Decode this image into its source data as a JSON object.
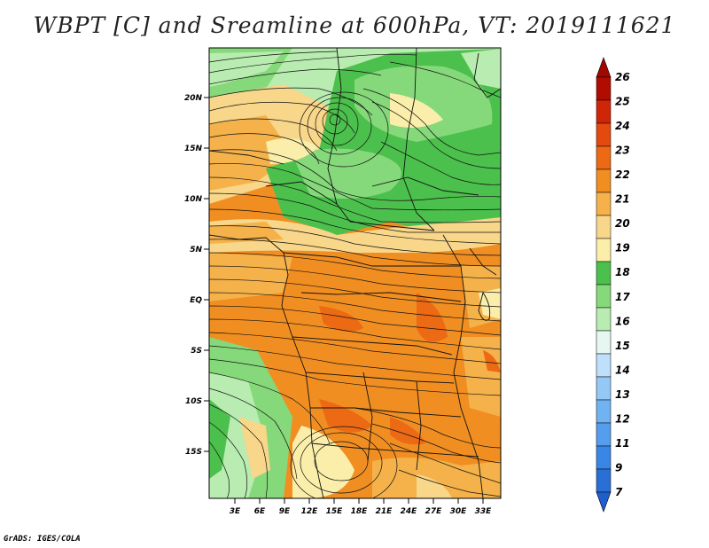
{
  "title": "WBPT [C] and Sreamline at 600hPa, VT: 2019111621",
  "footer": "GrADS: IGES/COLA",
  "map": {
    "lat_labels": [
      "20N",
      "15N",
      "10N",
      "5N",
      "EQ",
      "5S",
      "10S",
      "15S"
    ],
    "lon_labels": [
      "3E",
      "6E",
      "9E",
      "12E",
      "15E",
      "18E",
      "21E",
      "24E",
      "27E",
      "30E",
      "33E"
    ]
  },
  "colorbar": {
    "levels": [
      "7",
      "9",
      "11",
      "12",
      "13",
      "14",
      "15",
      "16",
      "17",
      "18",
      "19",
      "20",
      "21",
      "22",
      "23",
      "24",
      "25",
      "26"
    ],
    "colors": [
      "#2a6fd6",
      "#3a86e6",
      "#559ded",
      "#70b3f2",
      "#94c9f6",
      "#bfe0fa",
      "#e6f7f2",
      "#b8ecb0",
      "#86d97a",
      "#4cc04c",
      "#fbeeaa",
      "#f8d68a",
      "#f5b24a",
      "#f08e22",
      "#ec6a14",
      "#e44a10",
      "#d02608",
      "#b00d00"
    ],
    "top_color": "#a00800",
    "bottom_color": "#1e5fd0"
  }
}
